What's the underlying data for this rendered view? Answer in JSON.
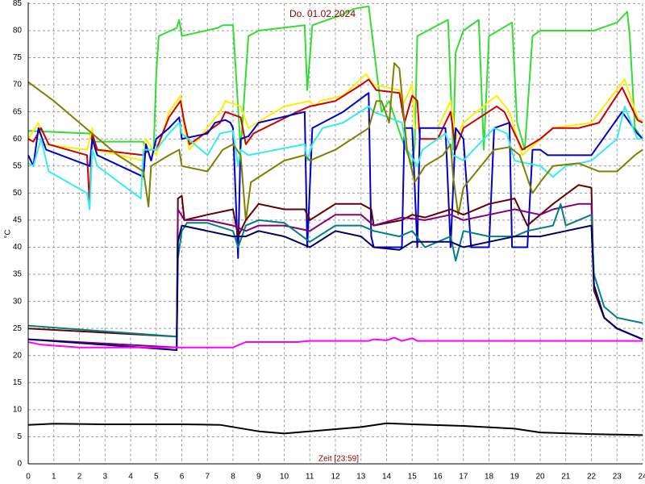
{
  "chart_data": {
    "type": "line",
    "title": "Do. 01.02.2024",
    "xlabel": "Zeit [23:59]",
    "ylabel": "°C",
    "xlim": [
      0,
      24
    ],
    "ylim": [
      0,
      85
    ],
    "xticks": [
      0,
      1,
      2,
      3,
      4,
      5,
      6,
      7,
      8,
      9,
      10,
      11,
      12,
      13,
      14,
      15,
      16,
      17,
      18,
      19,
      20,
      21,
      22,
      23,
      24
    ],
    "yticks": [
      0,
      5,
      10,
      15,
      20,
      25,
      30,
      35,
      40,
      45,
      50,
      55,
      60,
      65,
      70,
      75,
      80,
      85
    ],
    "grid": true,
    "series": [
      {
        "color": "#33dd33",
        "x": [
          0,
          2.4,
          2.5,
          4.5,
          4.6,
          4.9,
          5.0,
          5.1,
          5.8,
          5.9,
          6.0,
          7.4,
          7.6,
          8.0,
          8.3,
          8.6,
          9.0,
          10.8,
          10.9,
          11.1,
          12.3,
          12.7,
          13.3,
          13.8,
          14.1,
          14.6,
          15.0,
          15.1,
          15.2,
          15.8,
          16.4,
          16.6,
          16.7,
          17.0,
          17.6,
          17.8,
          18.0,
          18.9,
          19.1,
          19.4,
          19.7,
          20.0,
          21.9,
          22.1,
          23.0,
          23.4,
          23.5,
          23.7,
          24
        ],
        "values": [
          61.5,
          61,
          59.5,
          59.5,
          58,
          58,
          72,
          79,
          80.5,
          82,
          79,
          80.5,
          81,
          81,
          58,
          79,
          80,
          81,
          69,
          81,
          83,
          84,
          84.5,
          65,
          67,
          60,
          55,
          59,
          79,
          80.5,
          82,
          58,
          76,
          80,
          82,
          58,
          79,
          81.5,
          63,
          58,
          79,
          80,
          80,
          80,
          81.5,
          83.5,
          79,
          62,
          60
        ]
      },
      {
        "color": "#ffee00",
        "x": [
          0,
          0.4,
          0.6,
          2.3,
          2.5,
          2.6,
          4.5,
          4.6,
          5.0,
          5.5,
          5.95,
          6.1,
          6.3,
          7.5,
          7.7,
          8.3,
          8.6,
          10.0,
          11.0,
          11.2,
          11.4,
          12.3,
          13.2,
          13.5,
          14.5,
          14.6,
          15.0,
          15.1,
          16.0,
          16.5,
          16.7,
          17.0,
          18.3,
          18.8,
          19.3,
          20.5,
          22.0,
          23.3,
          23.8,
          24
        ],
        "values": [
          60,
          63,
          59,
          58,
          62,
          58,
          56,
          60,
          57,
          65,
          68,
          62,
          58,
          65,
          67,
          66,
          62,
          66,
          67,
          66,
          67,
          68,
          72,
          70,
          69,
          66,
          70,
          62,
          62,
          67,
          60,
          63,
          68,
          65,
          57,
          62,
          63,
          71,
          64,
          63
        ]
      },
      {
        "color": "#cc0000",
        "x": [
          0,
          0.2,
          0.5,
          0.8,
          2.3,
          2.4,
          2.5,
          2.7,
          4.5,
          4.7,
          5.0,
          5.5,
          5.95,
          6.1,
          6.3,
          7.5,
          7.7,
          8.3,
          8.5,
          8.8,
          10.5,
          11.0,
          12.0,
          13.0,
          13.3,
          13.6,
          14.5,
          14.7,
          15.0,
          15.2,
          15.3,
          16.0,
          16.5,
          16.7,
          17.0,
          18.3,
          18.6,
          19.3,
          20.0,
          20.5,
          21.5,
          22.3,
          23.2,
          23.8,
          24
        ],
        "values": [
          60,
          59.5,
          62,
          59,
          57,
          48,
          61,
          58,
          57,
          58,
          58,
          64,
          67,
          63,
          59,
          63,
          65,
          64,
          59,
          61,
          65,
          66,
          67,
          70,
          71,
          69,
          68.5,
          63,
          68,
          67,
          60,
          60,
          65,
          58,
          62,
          66,
          65,
          58,
          60,
          62,
          62,
          63,
          69.5,
          63.5,
          63
        ]
      },
      {
        "color": "#0000cc",
        "x": [
          0,
          0.2,
          0.4,
          0.7,
          2.4,
          2.5,
          2.7,
          4.5,
          4.6,
          4.8,
          5.0,
          5.5,
          5.9,
          6.0,
          7.0,
          7.3,
          7.7,
          7.9,
          8.0,
          8.2,
          8.3,
          8.6,
          9.0,
          10.8,
          10.9,
          11.1,
          12.3,
          13.3,
          13.4,
          13.5,
          14.6,
          14.7,
          15.0,
          15.2,
          15.3,
          16.3,
          16.5,
          16.7,
          17.0,
          17.3,
          18.0,
          18.2,
          18.8,
          18.9,
          19.5,
          19.7,
          20.0,
          20.3,
          22.0,
          23.2,
          23.8,
          24
        ],
        "values": [
          57,
          55,
          62,
          58,
          55,
          60,
          57,
          53,
          59,
          56,
          60,
          62,
          64,
          60,
          61,
          63,
          63.5,
          63,
          62,
          38,
          60,
          60.5,
          63,
          65,
          40,
          62,
          65,
          68.5,
          42,
          40,
          40,
          62,
          62,
          40,
          62,
          62,
          40,
          62,
          60,
          40,
          40,
          62,
          63,
          40,
          40,
          58,
          58,
          57,
          57,
          65,
          61,
          60
        ]
      },
      {
        "color": "#33eeee",
        "x": [
          0,
          0.2,
          0.5,
          0.8,
          2.3,
          2.4,
          2.5,
          2.7,
          4.4,
          4.5,
          5.0,
          5.5,
          5.9,
          6.0,
          7.0,
          7.5,
          8.0,
          8.2,
          8.3,
          8.6,
          10.8,
          10.9,
          11.1,
          11.5,
          12.3,
          13.3,
          13.5,
          14.6,
          14.8,
          15.2,
          15.4,
          16.3,
          16.6,
          17.0,
          18.2,
          18.7,
          19.0,
          20.0,
          20.5,
          21.0,
          22.0,
          23.0,
          23.3,
          23.8,
          24
        ],
        "values": [
          55.5,
          55,
          60,
          54,
          50,
          47,
          58,
          55,
          49,
          58,
          58,
          61,
          63,
          61,
          57,
          61,
          61.5,
          55,
          58,
          57,
          59,
          56,
          59,
          62,
          63,
          66,
          65,
          63,
          58,
          55,
          58,
          61,
          57,
          56,
          62,
          61,
          56,
          55,
          53,
          55,
          56,
          60,
          66,
          60,
          60
        ]
      },
      {
        "color": "#808000",
        "x": [
          0,
          1.0,
          2.0,
          3.5,
          4.5,
          4.7,
          4.8,
          5.5,
          5.9,
          6.0,
          7.0,
          7.6,
          8.0,
          8.3,
          8.5,
          8.7,
          10.0,
          10.8,
          11.0,
          12.0,
          13.3,
          13.6,
          13.8,
          14.1,
          14.3,
          14.5,
          14.8,
          15.1,
          15.5,
          16.2,
          16.5,
          16.6,
          16.8,
          17.0,
          18.2,
          18.8,
          19.2,
          19.7,
          20.0,
          20.5,
          21.5,
          22.3,
          23.0,
          23.7,
          24
        ],
        "values": [
          70.5,
          67,
          63,
          57,
          54,
          47.5,
          55,
          57,
          58,
          55,
          54,
          58,
          59,
          57,
          45,
          52,
          56,
          57,
          56,
          58,
          62,
          67,
          67,
          63,
          74,
          73,
          58,
          52,
          55,
          57,
          59,
          53,
          46,
          51,
          58,
          58.5,
          57,
          50,
          52,
          55,
          55.5,
          54,
          54,
          57,
          58
        ]
      },
      {
        "color": "#660000",
        "x": [
          0,
          5.8,
          5.85,
          6.0,
          6.1,
          7.0,
          8.0,
          8.2,
          8.5,
          9.0,
          10.0,
          10.8,
          11.0,
          12.0,
          13.0,
          13.4,
          13.5,
          14.6,
          15.0,
          15.5,
          16.5,
          17.0,
          18.0,
          19.0,
          19.5,
          20.5,
          21.5,
          22.0,
          22.1,
          22.5,
          23.0,
          24
        ],
        "values": [
          25,
          23.5,
          49,
          49.5,
          45,
          46,
          47,
          42,
          45,
          48,
          47,
          47,
          45,
          48,
          48,
          47,
          44,
          45,
          46,
          45.5,
          47,
          46,
          48,
          49,
          44,
          48,
          51.5,
          51,
          32,
          27,
          25,
          23
        ]
      },
      {
        "color": "#800080",
        "x": [
          0,
          5.8,
          5.85,
          6.1,
          7.0,
          8.0,
          8.5,
          9.0,
          10.0,
          11.0,
          12.0,
          13.0,
          13.5,
          14.6,
          15.5,
          16.5,
          17.0,
          18.0,
          19.0,
          20.0,
          20.5,
          21.5,
          22.0,
          22.1,
          22.5,
          23.0,
          24
        ],
        "values": [
          23,
          21.5,
          47,
          45,
          45,
          44,
          43,
          44,
          44,
          43,
          46,
          46,
          44,
          45.5,
          45,
          46,
          45,
          46,
          47,
          46,
          47,
          48,
          48,
          33,
          27,
          25,
          23
        ]
      },
      {
        "color": "#008080",
        "x": [
          0,
          5.8,
          5.85,
          6.0,
          6.2,
          7.0,
          8.0,
          8.2,
          8.5,
          9.0,
          10.0,
          11.0,
          12.0,
          13.0,
          13.5,
          14.5,
          15.0,
          15.5,
          16.5,
          16.7,
          17.0,
          18.0,
          19.0,
          19.5,
          20.5,
          20.8,
          21.0,
          21.5,
          22.0,
          22.1,
          22.5,
          23.0,
          24
        ],
        "values": [
          25.5,
          23.5,
          38,
          43,
          44.5,
          44.5,
          43,
          40,
          44,
          45,
          44.5,
          41,
          44,
          44,
          43,
          42,
          43,
          40,
          42,
          37.5,
          43,
          42,
          42,
          43,
          44,
          48,
          44,
          45,
          46,
          35,
          29,
          27,
          26
        ]
      },
      {
        "color": "#000066",
        "x": [
          0,
          5.8,
          5.85,
          6.0,
          7.0,
          8.0,
          8.5,
          9.0,
          10.0,
          11.0,
          12.0,
          13.0,
          13.5,
          14.5,
          15.0,
          16.0,
          16.5,
          17.0,
          18.0,
          19.0,
          20.0,
          21.0,
          22.0,
          22.1,
          22.5,
          23.0,
          24
        ],
        "values": [
          23,
          21,
          41,
          44,
          43,
          42,
          42,
          43,
          42,
          40,
          43,
          42,
          40,
          39.5,
          41,
          41,
          41,
          40,
          41,
          42,
          42,
          43,
          44,
          33,
          27,
          25,
          23
        ]
      },
      {
        "color": "#ff00ff",
        "x": [
          0,
          0.5,
          2.0,
          6.0,
          8.0,
          8.5,
          10.5,
          11.0,
          13.3,
          13.5,
          14.0,
          14.3,
          14.6,
          15.0,
          15.2,
          24
        ],
        "values": [
          22.5,
          22,
          21.5,
          21.5,
          21.5,
          22.5,
          22.5,
          22.7,
          22.7,
          23,
          22.8,
          23.3,
          22.7,
          23.2,
          22.7,
          22.7
        ]
      },
      {
        "color": "#000000",
        "x": [
          0,
          1,
          3,
          6,
          7.5,
          9,
          10,
          11,
          13,
          14,
          15,
          17,
          19,
          20,
          22,
          24
        ],
        "values": [
          7.2,
          7.4,
          7.3,
          7.3,
          7.2,
          6,
          5.6,
          6,
          6.8,
          7.5,
          7.3,
          7,
          6.5,
          5.8,
          5.5,
          5.3
        ]
      }
    ]
  }
}
